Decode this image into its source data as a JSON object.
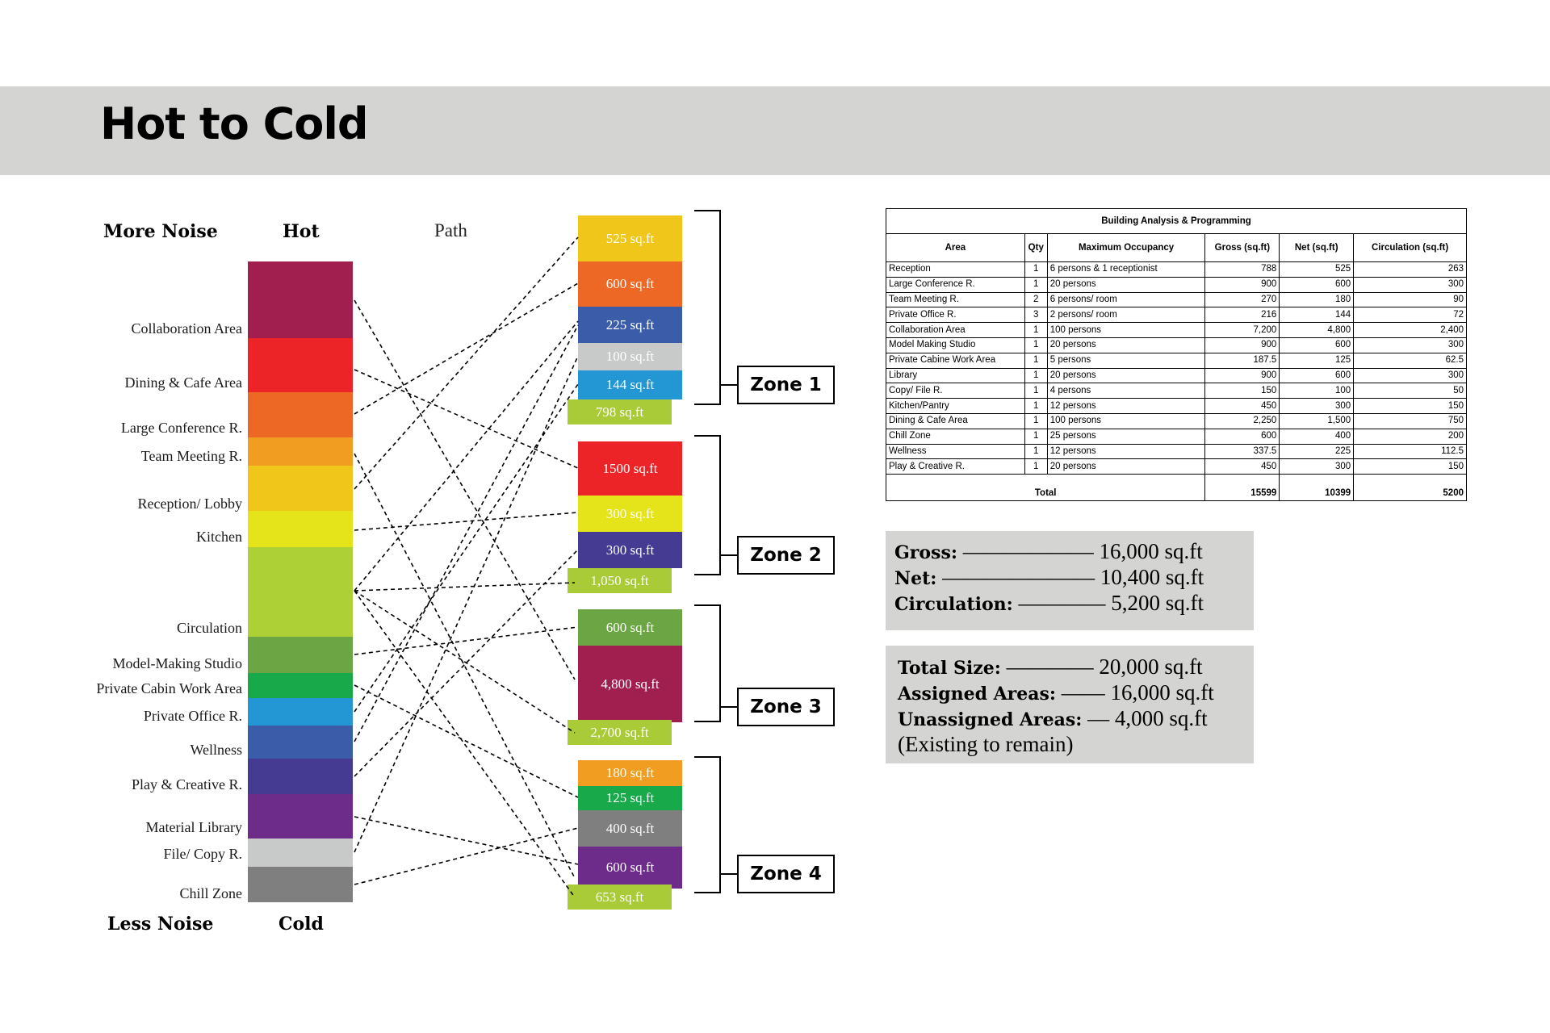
{
  "title": "Hot to Cold",
  "headers": {
    "more_noise": "More Noise",
    "hot": "Hot",
    "path": "Path",
    "less_noise": "Less Noise",
    "cold": "Cold"
  },
  "spectrum": [
    {
      "label": "Collaboration Area",
      "color": "#a01f4f"
    },
    {
      "label": "Dining & Cafe Area",
      "color": "#ec2327"
    },
    {
      "label": "Large Conference R.",
      "color": "#ee6825"
    },
    {
      "label": "Team Meeting R.",
      "color": "#f19d22"
    },
    {
      "label": "Reception/ Lobby",
      "color": "#f0c61b"
    },
    {
      "label": "Kitchen",
      "color": "#e5e41b"
    },
    {
      "label": "Circulation",
      "color": "#acd035"
    },
    {
      "label": "Model-Making Studio",
      "color": "#6ca644"
    },
    {
      "label": "Private Cabin Work Area",
      "color": "#17a94a"
    },
    {
      "label": "Private Office R.",
      "color": "#2396d4"
    },
    {
      "label": "Wellness",
      "color": "#3b5da9"
    },
    {
      "label": "Play & Creative R.",
      "color": "#453b92"
    },
    {
      "label": "Material Library",
      "color": "#6d2c8a"
    },
    {
      "label": "File/ Copy R.",
      "color": "#c8cac9"
    },
    {
      "label": "Chill Zone",
      "color": "#7f7f7f"
    }
  ],
  "zones": [
    {
      "name": "Zone 1",
      "blocks": [
        {
          "text": "525 sq.ft",
          "color": "#f0c61b"
        },
        {
          "text": "600 sq.ft",
          "color": "#ee6825"
        },
        {
          "text": "225 sq.ft",
          "color": "#3b5da9"
        },
        {
          "text": "100 sq.ft",
          "color": "#c8cac9"
        },
        {
          "text": "144 sq.ft",
          "color": "#2396d4"
        }
      ],
      "total": "798 sq.ft"
    },
    {
      "name": "Zone 2",
      "blocks": [
        {
          "text": "1500 sq.ft",
          "color": "#ec2327"
        },
        {
          "text": "300 sq.ft",
          "color": "#e5e41b"
        },
        {
          "text": "300 sq.ft",
          "color": "#453b92"
        }
      ],
      "total": "1,050 sq.ft"
    },
    {
      "name": "Zone 3",
      "blocks": [
        {
          "text": "600 sq.ft",
          "color": "#6ca644"
        },
        {
          "text": "4,800 sq.ft",
          "color": "#a01f4f"
        }
      ],
      "total": "2,700 sq.ft"
    },
    {
      "name": "Zone 4",
      "blocks": [
        {
          "text": "180 sq.ft",
          "color": "#f19d22"
        },
        {
          "text": "125 sq.ft",
          "color": "#17a94a"
        },
        {
          "text": "400 sq.ft",
          "color": "#7f7f7f"
        },
        {
          "text": "600 sq.ft",
          "color": "#6d2c8a"
        }
      ],
      "total": "653 sq.ft"
    }
  ],
  "table": {
    "title": "Building Analysis & Programming",
    "columns": [
      "Area",
      "Qty",
      "Maximum Occupancy",
      "Gross (sq.ft)",
      "Net (sq.ft)",
      "Circulation (sq.ft)"
    ],
    "rows": [
      [
        "Reception",
        "1",
        "6 persons & 1 receptionist",
        "788",
        "525",
        "263"
      ],
      [
        "Large Conference R.",
        "1",
        "20 persons",
        "900",
        "600",
        "300"
      ],
      [
        "Team Meeting R.",
        "2",
        "6 persons/ room",
        "270",
        "180",
        "90"
      ],
      [
        "Private Office R.",
        "3",
        "2 persons/ room",
        "216",
        "144",
        "72"
      ],
      [
        "Collaboration Area",
        "1",
        "100 persons",
        "7,200",
        "4,800",
        "2,400"
      ],
      [
        "Model Making Studio",
        "1",
        "20 persons",
        "900",
        "600",
        "300"
      ],
      [
        "Private Cabine Work Area",
        "1",
        "5 persons",
        "187.5",
        "125",
        "62.5"
      ],
      [
        "Library",
        "1",
        "20 persons",
        "900",
        "600",
        "300"
      ],
      [
        "Copy/ File R.",
        "1",
        "4 persons",
        "150",
        "100",
        "50"
      ],
      [
        "Kitchen/Pantry",
        "1",
        "12 persons",
        "450",
        "300",
        "150"
      ],
      [
        "Dining & Cafe Area",
        "1",
        "100 persons",
        "2,250",
        "1,500",
        "750"
      ],
      [
        "Chill Zone",
        "1",
        "25 persons",
        "600",
        "400",
        "200"
      ],
      [
        "Wellness",
        "1",
        "12 persons",
        "337.5",
        "225",
        "112.5"
      ],
      [
        "Play & Creative R.",
        "1",
        "20 persons",
        "450",
        "300",
        "150"
      ]
    ],
    "total_label": "Total",
    "total_gross": "15599",
    "total_net": "10399",
    "total_circ": "5200"
  },
  "summary1": {
    "gross_label": "Gross:",
    "gross_dash": "——————",
    "gross_value": "16,000 sq.ft",
    "net_label": "Net:",
    "net_dash": "———————",
    "net_value": "10,400 sq.ft",
    "circ_label": "Circulation:",
    "circ_dash": "————",
    "circ_value": "5,200 sq.ft"
  },
  "summary2": {
    "total_label": "Total Size:",
    "total_dash": "————",
    "total_value": "20,000 sq.ft",
    "assigned_label": "Assigned Areas:",
    "assigned_dash": "——",
    "assigned_value": "16,000 sq.ft",
    "unassigned_label": "Unassigned Areas:",
    "unassigned_dash": "—",
    "unassigned_value": "4,000 sq.ft",
    "note": "(Existing to remain)"
  }
}
